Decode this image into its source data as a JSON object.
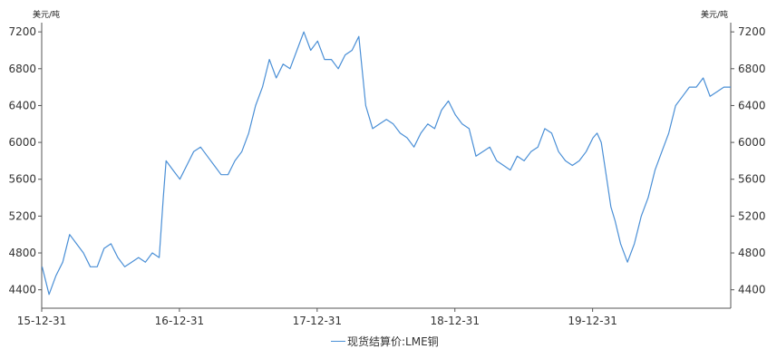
{
  "chart_data": {
    "type": "line",
    "unit_left": "美元/吨",
    "unit_right": "美元/吨",
    "y_ticks": [
      "4400",
      "4800",
      "5200",
      "5600",
      "6000",
      "6400",
      "6800",
      "7200"
    ],
    "y_tick_values": [
      4400,
      4800,
      5200,
      5600,
      6000,
      6400,
      6800,
      7200
    ],
    "ylim": [
      4200,
      7300
    ],
    "x_ticks": [
      "15-12-31",
      "16-12-31",
      "17-12-31",
      "18-12-31",
      "19-12-31"
    ],
    "x_tick_values": [
      2015.997,
      2016.997,
      2017.997,
      2018.997,
      2019.997
    ],
    "xlim": [
      2015.997,
      2021.0
    ],
    "line_color": "#4a8fd6",
    "legend": "现货结算价:LME铜",
    "series": [
      {
        "name": "现货结算价:LME铜",
        "x": [
          2016.0,
          2016.05,
          2016.1,
          2016.15,
          2016.2,
          2016.25,
          2016.3,
          2016.35,
          2016.4,
          2016.45,
          2016.5,
          2016.55,
          2016.6,
          2016.65,
          2016.7,
          2016.75,
          2016.8,
          2016.85,
          2016.88,
          2016.9,
          2016.95,
          2017.0,
          2017.05,
          2017.1,
          2017.15,
          2017.2,
          2017.25,
          2017.3,
          2017.35,
          2017.4,
          2017.45,
          2017.5,
          2017.55,
          2017.6,
          2017.65,
          2017.7,
          2017.75,
          2017.8,
          2017.85,
          2017.9,
          2017.95,
          2018.0,
          2018.05,
          2018.1,
          2018.15,
          2018.2,
          2018.25,
          2018.3,
          2018.35,
          2018.4,
          2018.45,
          2018.5,
          2018.55,
          2018.6,
          2018.65,
          2018.7,
          2018.75,
          2018.8,
          2018.85,
          2018.9,
          2018.95,
          2019.0,
          2019.05,
          2019.1,
          2019.15,
          2019.2,
          2019.25,
          2019.3,
          2019.35,
          2019.4,
          2019.45,
          2019.5,
          2019.55,
          2019.6,
          2019.65,
          2019.7,
          2019.75,
          2019.8,
          2019.85,
          2019.9,
          2019.95,
          2020.0,
          2020.03,
          2020.06,
          2020.1,
          2020.13,
          2020.16,
          2020.2,
          2020.25,
          2020.3,
          2020.35,
          2020.4,
          2020.45,
          2020.5,
          2020.55,
          2020.6,
          2020.65,
          2020.7,
          2020.75,
          2020.8,
          2020.85,
          2020.9,
          2020.95,
          2021.0
        ],
        "values": [
          4650,
          4350,
          4550,
          4700,
          5000,
          4900,
          4800,
          4650,
          4650,
          4850,
          4900,
          4750,
          4650,
          4700,
          4750,
          4700,
          4800,
          4750,
          5400,
          5800,
          5700,
          5600,
          5750,
          5900,
          5950,
          5850,
          5750,
          5650,
          5650,
          5800,
          5900,
          6100,
          6400,
          6600,
          6900,
          6700,
          6850,
          6800,
          7000,
          7200,
          7000,
          7100,
          6900,
          6900,
          6800,
          6950,
          7000,
          7150,
          6400,
          6150,
          6200,
          6250,
          6200,
          6100,
          6050,
          5950,
          6100,
          6200,
          6150,
          6350,
          6450,
          6300,
          6200,
          6150,
          5850,
          5900,
          5950,
          5800,
          5750,
          5700,
          5850,
          5800,
          5900,
          5950,
          6150,
          6100,
          5900,
          5800,
          5750,
          5800,
          5900,
          6050,
          6100,
          6000,
          5600,
          5300,
          5150,
          4900,
          4700,
          4900,
          5200,
          5400,
          5700,
          5900,
          6100,
          6400,
          6500,
          6600,
          6600,
          6700,
          6500,
          6550,
          6600,
          6600
        ]
      }
    ]
  }
}
